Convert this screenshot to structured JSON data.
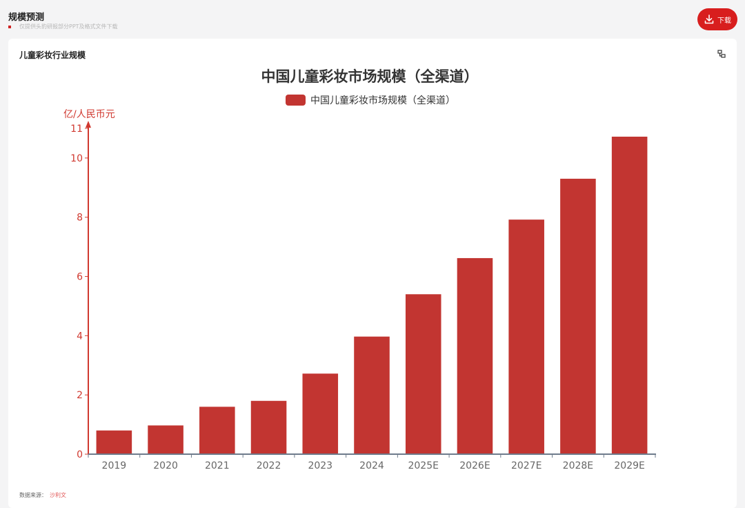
{
  "header": {
    "title": "规模预测",
    "note": "仅提供头豹研报部分PPT及格式文件下载",
    "download_label": "下载"
  },
  "card": {
    "title": "儿童彩妆行业规模",
    "source_label": "数据来源：",
    "source_value": "沙利文"
  },
  "colors": {
    "bar": "#c23531",
    "axis": "#d0382f",
    "accent": "#d81e1e"
  },
  "chart_data": {
    "type": "bar",
    "title": "中国儿童彩妆市场规模（全渠道）",
    "ylabel": "亿/人民币元",
    "xlabel": "",
    "ylim": [
      0,
      11
    ],
    "yticks": [
      0,
      2,
      4,
      6,
      8,
      10,
      11
    ],
    "categories": [
      "2019",
      "2020",
      "2021",
      "2022",
      "2023",
      "2024",
      "2025E",
      "2026E",
      "2027E",
      "2028E",
      "2029E"
    ],
    "series": [
      {
        "name": "中国儿童彩妆市场规模（全渠道）",
        "values": [
          0.8,
          0.97,
          1.6,
          1.8,
          2.72,
          3.97,
          5.4,
          6.62,
          7.92,
          9.3,
          10.72
        ]
      }
    ],
    "legend": "top-center",
    "grid": false
  }
}
